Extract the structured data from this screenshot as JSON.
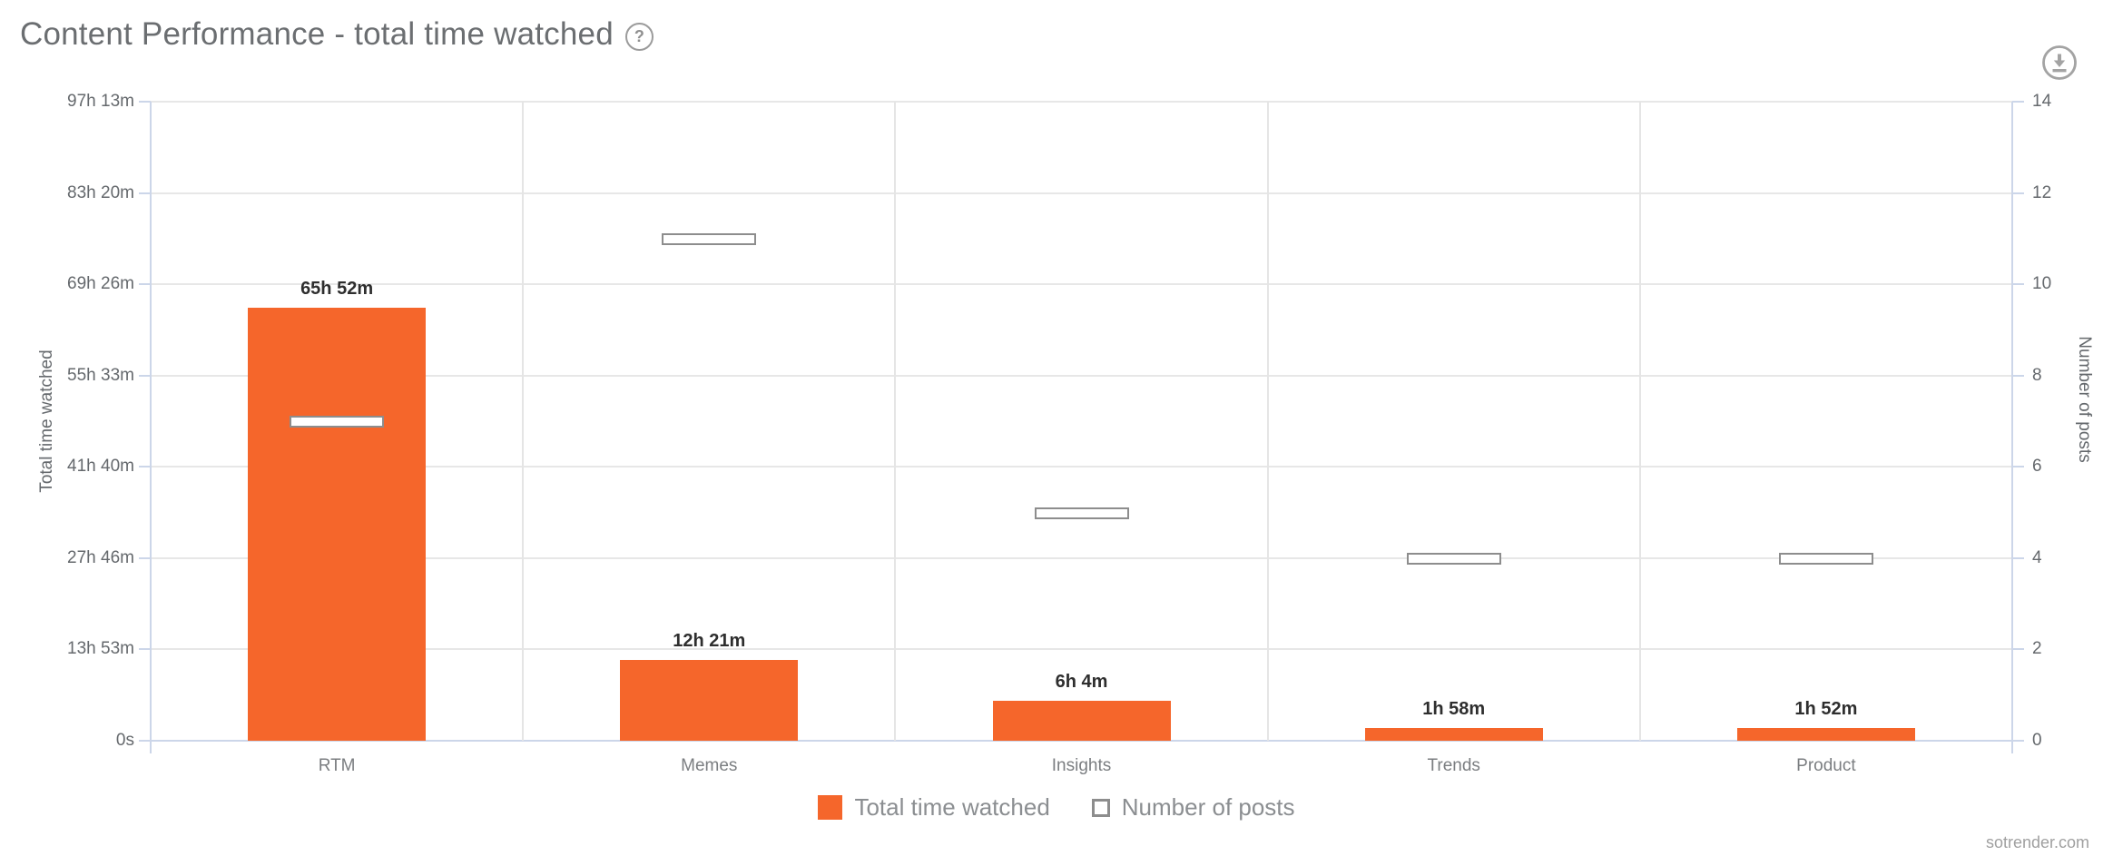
{
  "header": {
    "title": "Content Performance - total time watched",
    "help_icon": "?"
  },
  "watermark": "sotrender.com",
  "chart_data": {
    "type": "bar",
    "title": "Content Performance - total time watched",
    "categories": [
      "RTM",
      "Memes",
      "Insights",
      "Trends",
      "Product"
    ],
    "series": [
      {
        "name": "Total time watched",
        "type": "column",
        "axis": "left",
        "color": "#f5662b",
        "value_labels": [
          "65h 52m",
          "12h 21m",
          "6h 4m",
          "1h 58m",
          "1h 52m"
        ],
        "values_hours": [
          65.867,
          12.35,
          6.067,
          1.967,
          1.867
        ]
      },
      {
        "name": "Number of posts",
        "type": "marker",
        "axis": "right",
        "fill": "#ffffff",
        "border_color": "#8d8d8d",
        "values": [
          7,
          11,
          5,
          4,
          4
        ]
      }
    ],
    "left_axis": {
      "title": "Total time watched",
      "tick_labels_bottom_to_top": [
        "0s",
        "13h 53m",
        "27h 46m",
        "41h 40m",
        "55h 33m",
        "69h 26m",
        "83h 20m",
        "97h 13m"
      ],
      "min_hours": 0,
      "max_hours": 97.217
    },
    "right_axis": {
      "title": "Number of posts",
      "tick_labels_bottom_to_top": [
        "0",
        "2",
        "4",
        "6",
        "8",
        "10",
        "12",
        "14"
      ],
      "min": 0,
      "max": 14
    },
    "grid": true,
    "legend_position": "bottom"
  },
  "legend": {
    "items": [
      {
        "label": "Total time watched",
        "swatch": "orange-square"
      },
      {
        "label": "Number of posts",
        "swatch": "white-square-outline"
      }
    ]
  },
  "colors": {
    "bar_orange": "#f5662b",
    "axis_line": "#ccd6e9",
    "gridline": "#e7e7e7",
    "tick_text": "#65696d",
    "category_text": "#7b7e81",
    "legend_text": "#8b8e91",
    "title_text": "#6b6e71",
    "marker_border": "#8d8d8d"
  }
}
